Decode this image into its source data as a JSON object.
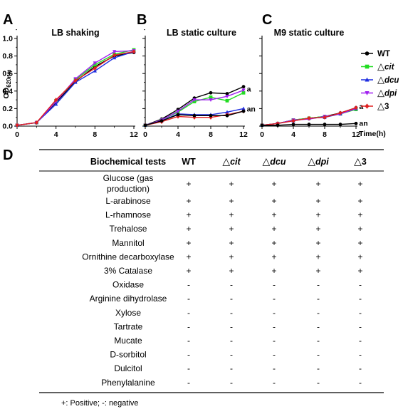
{
  "chart_data": [
    {
      "panel": "A",
      "type": "line",
      "title": "LB shaking",
      "ylabel": "OD620nm",
      "ylabel_main": "OD",
      "ylabel_sub": "620nm",
      "xlim": [
        0,
        12
      ],
      "ylim": [
        0,
        1.0
      ],
      "xticks": [
        "0",
        "4",
        "8",
        "12"
      ],
      "xtick_values": [
        0,
        4,
        8,
        12
      ],
      "yticks": [
        "0.0",
        "0.2",
        "0.4",
        "0.6",
        "0.8",
        "1.0"
      ],
      "ytick_values": [
        0,
        0.2,
        0.4,
        0.6,
        0.8,
        1.0
      ],
      "series": [
        {
          "name": "WT",
          "color": "#000000",
          "marker": "circle",
          "x": [
            0,
            2,
            4,
            6,
            8,
            10,
            12
          ],
          "y": [
            0.01,
            0.04,
            0.27,
            0.51,
            0.68,
            0.8,
            0.84
          ]
        },
        {
          "name": "△cit",
          "color": "#22dd22",
          "marker": "square",
          "x": [
            0,
            2,
            4,
            6,
            8,
            10,
            12
          ],
          "y": [
            0.01,
            0.04,
            0.29,
            0.53,
            0.7,
            0.82,
            0.87
          ]
        },
        {
          "name": "△dcu",
          "color": "#1f2ee0",
          "marker": "triangle",
          "x": [
            0,
            2,
            4,
            6,
            8,
            10,
            12
          ],
          "y": [
            0.01,
            0.04,
            0.25,
            0.5,
            0.63,
            0.78,
            0.85
          ]
        },
        {
          "name": "△dpi",
          "color": "#a020f0",
          "marker": "triangle-down",
          "x": [
            0,
            2,
            4,
            6,
            8,
            10,
            12
          ],
          "y": [
            0.01,
            0.04,
            0.28,
            0.54,
            0.72,
            0.85,
            0.86
          ]
        },
        {
          "name": "△3",
          "color": "#e02020",
          "marker": "diamond",
          "x": [
            0,
            2,
            4,
            6,
            8,
            10,
            12
          ],
          "y": [
            0.01,
            0.04,
            0.3,
            0.52,
            0.66,
            0.81,
            0.85
          ]
        }
      ],
      "annotations": []
    },
    {
      "panel": "B",
      "type": "line",
      "title": "LB static culture",
      "xlim": [
        0,
        12
      ],
      "ylim": [
        0,
        1.0
      ],
      "xticks": [
        "0",
        "4",
        "8",
        "12"
      ],
      "xtick_values": [
        0,
        4,
        8,
        12
      ],
      "series": [
        {
          "name": "WT",
          "color": "#000000",
          "marker": "circle",
          "x": [
            0,
            2,
            4,
            6,
            8,
            10,
            12
          ],
          "y": [
            0.01,
            0.08,
            0.19,
            0.32,
            0.38,
            0.37,
            0.45
          ]
        },
        {
          "name": "△cit",
          "color": "#22dd22",
          "marker": "square",
          "x": [
            0,
            2,
            4,
            6,
            8,
            10,
            12
          ],
          "y": [
            0.01,
            0.07,
            0.16,
            0.28,
            0.33,
            0.29,
            0.38
          ]
        },
        {
          "name": "△dcu",
          "color": "#1f2ee0",
          "marker": "triangle",
          "x": [
            0,
            2,
            4,
            6,
            8,
            10,
            12
          ],
          "y": [
            0.01,
            0.06,
            0.14,
            0.13,
            0.13,
            0.16,
            0.2
          ]
        },
        {
          "name": "△dpi",
          "color": "#a020f0",
          "marker": "triangle-down",
          "x": [
            0,
            2,
            4,
            6,
            8,
            10,
            12
          ],
          "y": [
            0.01,
            0.07,
            0.17,
            0.3,
            0.3,
            0.34,
            0.41
          ]
        },
        {
          "name": "△3",
          "color": "#e02020",
          "marker": "diamond",
          "x": [
            0,
            2,
            4,
            6,
            8,
            10,
            12
          ],
          "y": [
            0.01,
            0.05,
            0.11,
            0.1,
            0.1,
            0.13,
            0.17
          ]
        },
        {
          "name": "",
          "color": "#000000",
          "marker": "circle",
          "x": [
            0,
            2,
            4,
            6,
            8,
            10,
            12
          ],
          "y": [
            0.01,
            0.06,
            0.13,
            0.12,
            0.12,
            0.12,
            0.17
          ]
        }
      ],
      "annotations": [
        {
          "text": "a",
          "x": 12.4,
          "y": 0.42
        },
        {
          "text": "an",
          "x": 12.4,
          "y": 0.19
        }
      ]
    },
    {
      "panel": "C",
      "type": "line",
      "title": "M9 static culture",
      "xlabel": "Time(h)",
      "xlim": [
        0,
        12
      ],
      "ylim": [
        0,
        1.0
      ],
      "xticks": [
        "0",
        "4",
        "8",
        "12"
      ],
      "xtick_values": [
        0,
        4,
        8,
        12
      ],
      "series": [
        {
          "name": "WT",
          "color": "#000000",
          "marker": "circle",
          "x": [
            0,
            2,
            4,
            6,
            8,
            10,
            12
          ],
          "y": [
            0.01,
            0.03,
            0.07,
            0.09,
            0.11,
            0.15,
            0.21
          ]
        },
        {
          "name": "△cit",
          "color": "#22dd22",
          "marker": "square",
          "x": [
            0,
            2,
            4,
            6,
            8,
            10,
            12
          ],
          "y": [
            0.01,
            0.03,
            0.07,
            0.09,
            0.11,
            0.14,
            0.19
          ]
        },
        {
          "name": "△dcu",
          "color": "#1f2ee0",
          "marker": "triangle",
          "x": [
            0,
            2,
            4,
            6,
            8,
            10,
            12
          ],
          "y": [
            0.01,
            0.03,
            0.06,
            0.09,
            0.1,
            0.14,
            0.2
          ]
        },
        {
          "name": "△dpi",
          "color": "#a020f0",
          "marker": "triangle-down",
          "x": [
            0,
            2,
            4,
            6,
            8,
            10,
            12
          ],
          "y": [
            0.01,
            0.03,
            0.07,
            0.08,
            0.11,
            0.14,
            0.2
          ]
        },
        {
          "name": "△3",
          "color": "#e02020",
          "marker": "diamond",
          "x": [
            0,
            2,
            4,
            6,
            8,
            10,
            12
          ],
          "y": [
            0.01,
            0.03,
            0.06,
            0.09,
            0.1,
            0.15,
            0.21
          ]
        },
        {
          "name": "",
          "color": "#000000",
          "marker": "circle",
          "x": [
            0,
            2,
            4,
            6,
            8,
            10,
            12
          ],
          "y": [
            0.01,
            0.01,
            0.02,
            0.02,
            0.02,
            0.02,
            0.03
          ]
        }
      ],
      "annotations": [
        {
          "text": "a",
          "x": 12.4,
          "y": 0.22
        },
        {
          "text": "an",
          "x": 12.4,
          "y": 0.03
        }
      ]
    }
  ],
  "panel_letters": {
    "a": "A",
    "b": "B",
    "c": "C",
    "d": "D"
  },
  "legend": [
    {
      "prefix": "",
      "name": "WT",
      "italic": false,
      "color": "#000000",
      "marker": "circle"
    },
    {
      "prefix": "△",
      "name": "cit",
      "italic": true,
      "color": "#22dd22",
      "marker": "square"
    },
    {
      "prefix": "△",
      "name": "dcu",
      "italic": true,
      "color": "#1f2ee0",
      "marker": "triangle"
    },
    {
      "prefix": "△",
      "name": "dpi",
      "italic": true,
      "color": "#a020f0",
      "marker": "triangle-down"
    },
    {
      "prefix": "△",
      "name": "3",
      "italic": false,
      "color": "#e02020",
      "marker": "diamond"
    }
  ],
  "table": {
    "headers": [
      {
        "prefix": "",
        "text": "Biochemical tests",
        "italic": false
      },
      {
        "prefix": "",
        "text": "WT",
        "italic": false
      },
      {
        "prefix": "△",
        "text": "cit",
        "italic": true
      },
      {
        "prefix": "△",
        "text": "dcu",
        "italic": true
      },
      {
        "prefix": "△",
        "text": "dpi",
        "italic": true
      },
      {
        "prefix": "△",
        "text": "3",
        "italic": false
      }
    ],
    "rows": [
      {
        "test": [
          "Glucose (gas",
          "production)"
        ],
        "values": [
          "+",
          "+",
          "+",
          "+",
          "+"
        ]
      },
      {
        "test": [
          "L-arabinose"
        ],
        "values": [
          "+",
          "+",
          "+",
          "+",
          "+"
        ]
      },
      {
        "test": [
          "L-rhamnose"
        ],
        "values": [
          "+",
          "+",
          "+",
          "+",
          "+"
        ]
      },
      {
        "test": [
          "Trehalose"
        ],
        "values": [
          "+",
          "+",
          "+",
          "+",
          "+"
        ]
      },
      {
        "test": [
          "Mannitol"
        ],
        "values": [
          "+",
          "+",
          "+",
          "+",
          "+"
        ]
      },
      {
        "test": [
          "Ornithine decarboxylase"
        ],
        "values": [
          "+",
          "+",
          "+",
          "+",
          "+"
        ]
      },
      {
        "test": [
          "3% Catalase"
        ],
        "values": [
          "+",
          "+",
          "+",
          "+",
          "+"
        ]
      },
      {
        "test": [
          "Oxidase"
        ],
        "values": [
          "-",
          "-",
          "-",
          "-",
          "-"
        ]
      },
      {
        "test": [
          "Arginine dihydrolase"
        ],
        "values": [
          "-",
          "-",
          "-",
          "-",
          "-"
        ]
      },
      {
        "test": [
          "Xylose"
        ],
        "values": [
          "-",
          "-",
          "-",
          "-",
          "-"
        ]
      },
      {
        "test": [
          "Tartrate"
        ],
        "values": [
          "-",
          "-",
          "-",
          "-",
          "-"
        ]
      },
      {
        "test": [
          "Mucate"
        ],
        "values": [
          "-",
          "-",
          "-",
          "-",
          "-"
        ]
      },
      {
        "test": [
          "D-sorbitol"
        ],
        "values": [
          "-",
          "-",
          "-",
          "-",
          "-"
        ]
      },
      {
        "test": [
          "Dulcitol"
        ],
        "values": [
          "-",
          "-",
          "-",
          "-",
          "-"
        ]
      },
      {
        "test": [
          "Phenylalanine"
        ],
        "values": [
          "-",
          "-",
          "-",
          "-",
          "-"
        ]
      }
    ],
    "note": "+:  Positive;  -:  negative"
  }
}
